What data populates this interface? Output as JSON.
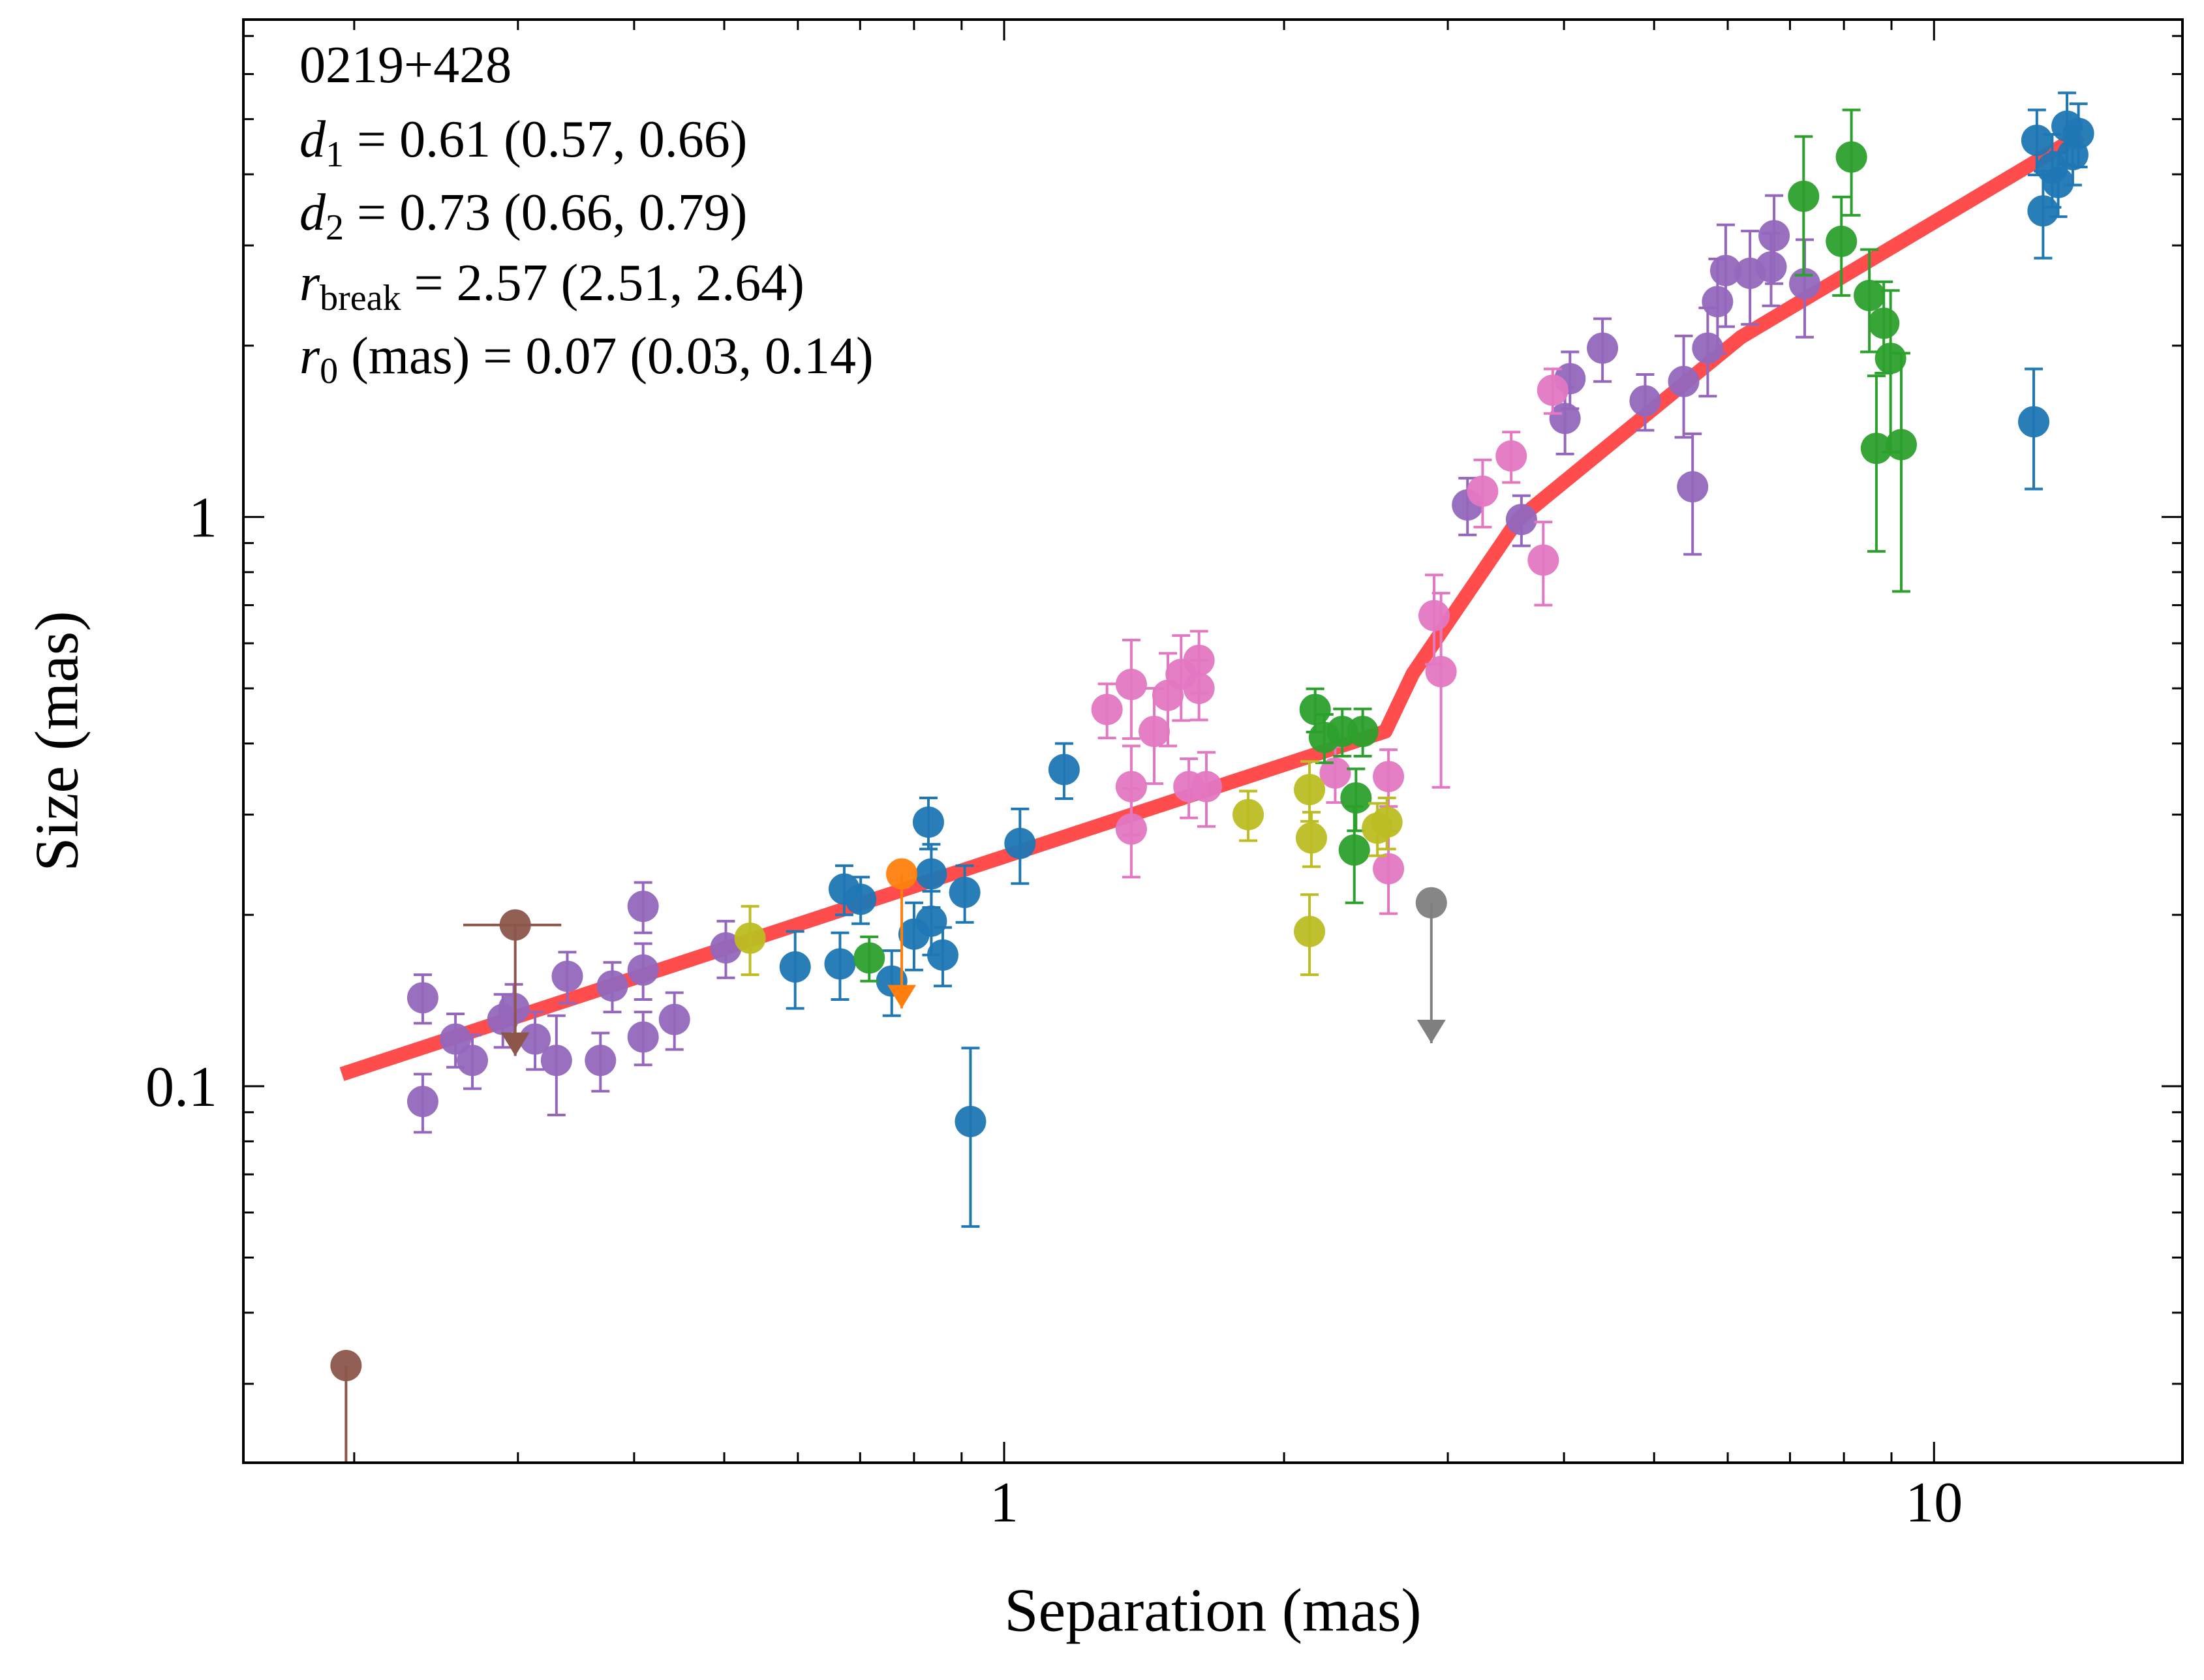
{
  "chart_data": {
    "type": "scatter",
    "xlabel": "Separation (mas)",
    "ylabel": "Size (mas)",
    "xscale": "log",
    "yscale": "log",
    "xlim": [
      0.152,
      18.5
    ],
    "ylim": [
      0.0218,
      7.48
    ],
    "xticks": [
      1,
      10
    ],
    "yticks": [
      0.1,
      1
    ],
    "xminorticks": [
      0.2,
      0.3,
      0.4,
      0.5,
      0.6,
      0.7,
      0.8,
      0.9,
      2,
      3,
      4,
      5,
      6,
      7,
      8,
      9
    ],
    "yminorticks": [
      0.03,
      0.04,
      0.05,
      0.06,
      0.07,
      0.08,
      0.09,
      0.2,
      0.3,
      0.4,
      0.5,
      0.6,
      0.7,
      0.8,
      0.9,
      2,
      3,
      4,
      5,
      6,
      7
    ],
    "annotations": [
      {
        "text": "0219+428"
      },
      {
        "symbol": "d",
        "sub": "1",
        "text": " = 0.61 (0.57, 0.66)"
      },
      {
        "symbol": "d",
        "sub": "2",
        "text": " = 0.73 (0.66, 0.79)"
      },
      {
        "symbol": "r",
        "sub": "break",
        "text": " = 2.57 (2.51, 2.64)"
      },
      {
        "symbol": "r",
        "sub": "0",
        "text": " (mas) = 0.07 (0.03, 0.14)"
      }
    ],
    "fit": {
      "color": "#ff0000",
      "x": [
        0.194,
        2.57,
        2.75,
        3.57,
        6.2,
        14.4
      ],
      "values": [
        0.105,
        0.42,
        0.53,
        0.99,
        2.07,
        4.7
      ]
    },
    "series": [
      {
        "color": "#9467bd",
        "x": [
          0.237,
          0.237,
          0.257,
          0.268,
          0.289,
          0.297,
          0.313,
          0.33,
          0.339,
          0.368,
          0.379,
          0.409,
          0.409,
          0.409,
          0.442,
          0.502,
          3.15,
          3.6,
          4.01,
          4.06,
          4.4,
          4.89,
          5.38,
          5.5,
          5.71,
          5.85,
          5.97,
          6.34,
          6.73,
          7.26,
          6.68
        ],
        "values": [
          0.143,
          0.094,
          0.121,
          0.111,
          0.131,
          0.137,
          0.121,
          0.111,
          0.156,
          0.111,
          0.15,
          0.207,
          0.16,
          0.122,
          0.131,
          0.175,
          1.05,
          0.99,
          1.49,
          1.75,
          1.98,
          1.6,
          1.73,
          1.13,
          1.98,
          2.39,
          2.71,
          2.68,
          3.12,
          2.57,
          2.75
        ],
        "yerr": [
          0.014,
          0.011,
          0.013,
          0.012,
          0.014,
          0.014,
          0.014,
          0.022,
          0.016,
          0.013,
          0.015,
          0.021,
          0.018,
          0.013,
          0.015,
          0.02,
          0.12,
          0.1,
          0.2,
          0.2,
          0.25,
          0.18,
          0.35,
          0.27,
          0.35,
          0.45,
          0.55,
          0.5,
          0.55,
          0.5,
          0.4
        ]
      },
      {
        "color": "#e377c2",
        "x": [
          1.29,
          1.37,
          1.37,
          1.37,
          1.45,
          1.5,
          1.55,
          1.58,
          1.62,
          1.62,
          1.65,
          2.9,
          2.95,
          3.27,
          3.51,
          3.8,
          3.89,
          2.59,
          2.59,
          2.27
        ],
        "values": [
          0.459,
          0.508,
          0.336,
          0.283,
          0.42,
          0.486,
          0.529,
          0.336,
          0.56,
          0.5,
          0.336,
          0.671,
          0.535,
          1.11,
          1.28,
          0.84,
          1.67,
          0.35,
          0.241,
          0.355
        ],
        "yerr": [
          0.05,
          0.1,
          0.06,
          0.05,
          0.08,
          0.09,
          0.09,
          0.04,
          0.07,
          0.06,
          0.05,
          0.12,
          0.2,
          0.15,
          0.13,
          0.14,
          0.15,
          0.04,
          0.04,
          0.04
        ]
      },
      {
        "color": "#1f77b4",
        "x": [
          0.596,
          0.666,
          0.673,
          0.701,
          0.757,
          0.8,
          0.829,
          0.835,
          0.835,
          0.859,
          0.907,
          0.92,
          1.04,
          1.16,
          12.8,
          12.9,
          13.4,
          13.9,
          13.1,
          14.3,
          13.6,
          14.1
        ],
        "values": [
          0.162,
          0.164,
          0.222,
          0.213,
          0.153,
          0.185,
          0.291,
          0.236,
          0.195,
          0.17,
          0.219,
          0.0867,
          0.267,
          0.36,
          1.47,
          4.59,
          4.1,
          4.86,
          3.45,
          4.72,
          3.87,
          4.33
        ],
        "yerr": [
          0.025,
          0.022,
          0.022,
          0.02,
          0.02,
          0.025,
          0.03,
          0.03,
          0.025,
          0.02,
          0.025,
          0.03,
          0.04,
          0.04,
          0.35,
          0.6,
          0.6,
          0.7,
          0.6,
          0.6,
          0.5,
          0.5
        ]
      },
      {
        "color": "#2ca02c",
        "x": [
          0.716,
          2.16,
          2.21,
          2.31,
          2.39,
          2.38,
          2.43,
          7.24,
          8.15,
          7.95,
          8.52,
          8.83,
          8.98,
          8.67,
          9.22
        ],
        "values": [
          0.168,
          0.459,
          0.41,
          0.42,
          0.321,
          0.26,
          0.42,
          3.66,
          4.29,
          3.05,
          2.45,
          2.19,
          1.9,
          1.32,
          1.34
        ],
        "yerr": [
          0.015,
          0.04,
          0.04,
          0.04,
          0.04,
          0.05,
          0.04,
          1.0,
          0.9,
          0.6,
          0.5,
          0.4,
          0.6,
          0.45,
          0.6
        ]
      },
      {
        "color": "#bcbd22",
        "x": [
          0.533,
          1.83,
          2.13,
          2.14,
          2.13,
          2.52,
          2.58
        ],
        "values": [
          0.182,
          0.3,
          0.332,
          0.273,
          0.187,
          0.284,
          0.291
        ],
        "yerr": [
          0.025,
          0.03,
          0.04,
          0.03,
          0.03,
          0.03,
          0.03
        ]
      },
      {
        "color": "#8c564b",
        "x": [
          0.298,
          0.196
        ],
        "values": [
          0.192,
          0.0323
        ],
        "xerr": [
          0.036,
          null
        ],
        "limit_to": [
          0.113,
          0.019
        ]
      },
      {
        "color": "#ff7f0e",
        "x": [
          0.776
        ],
        "values": [
          0.236
        ],
        "limit_to": [
          0.137
        ]
      },
      {
        "color": "#7f7f7f",
        "x": [
          2.88
        ],
        "values": [
          0.21
        ],
        "limit_to": [
          0.119
        ]
      }
    ]
  }
}
